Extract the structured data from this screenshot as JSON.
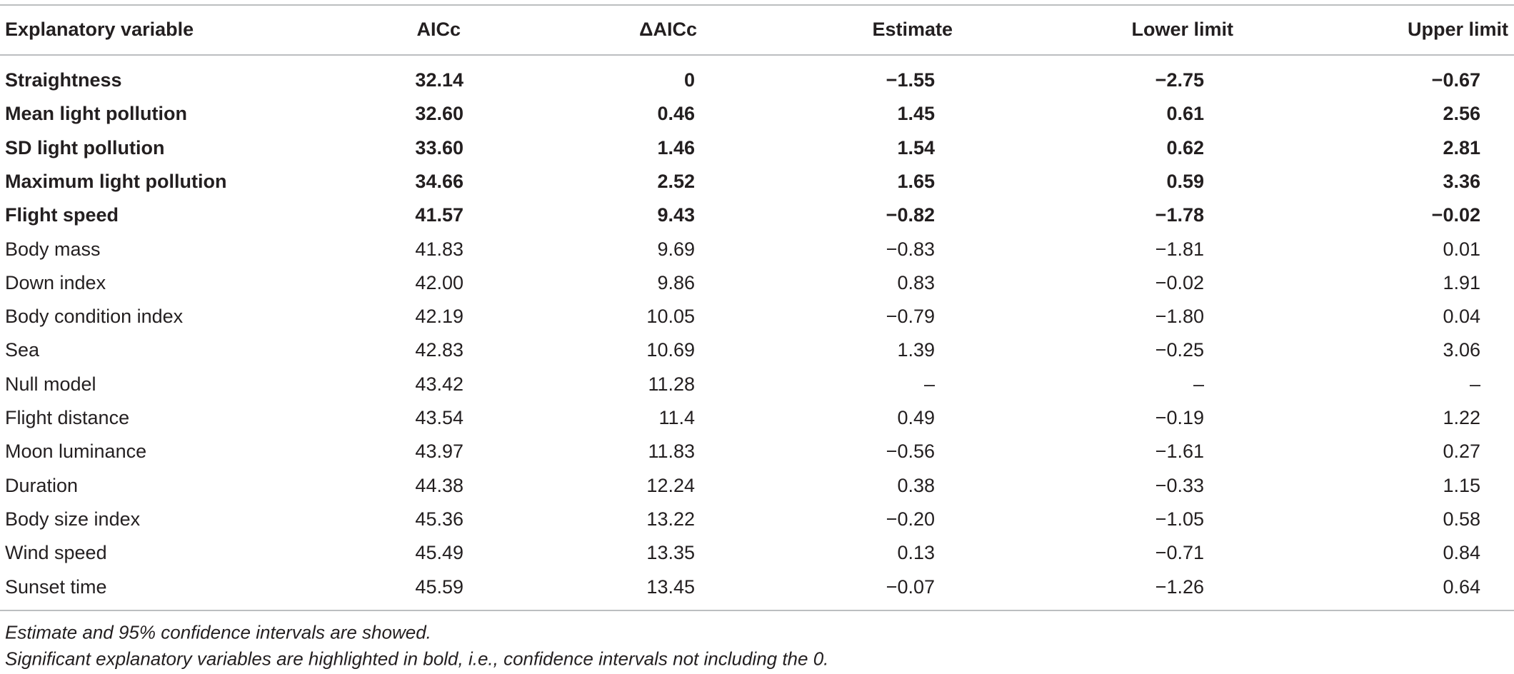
{
  "table": {
    "headers": [
      "Explanatory variable",
      "AICc",
      "ΔAICc",
      "Estimate",
      "Lower limit",
      "Upper limit"
    ],
    "rows": [
      [
        "Straightness",
        "32.14",
        "0",
        "−1.55",
        "−2.75",
        "−0.67"
      ],
      [
        "Mean light pollution",
        "32.60",
        "0.46",
        "1.45",
        "0.61",
        "2.56"
      ],
      [
        "SD light pollution",
        "33.60",
        "1.46",
        "1.54",
        "0.62",
        "2.81"
      ],
      [
        "Maximum light pollution",
        "34.66",
        "2.52",
        "1.65",
        "0.59",
        "3.36"
      ],
      [
        "Flight speed",
        "41.57",
        "9.43",
        "−0.82",
        "−1.78",
        "−0.02"
      ],
      [
        "Body mass",
        "41.83",
        "9.69",
        "−0.83",
        "−1.81",
        "0.01"
      ],
      [
        "Down index",
        "42.00",
        "9.86",
        "0.83",
        "−0.02",
        "1.91"
      ],
      [
        "Body condition index",
        "42.19",
        "10.05",
        "−0.79",
        "−1.80",
        "0.04"
      ],
      [
        "Sea",
        "42.83",
        "10.69",
        "1.39",
        "−0.25",
        "3.06"
      ],
      [
        "Null model",
        "43.42",
        "11.28",
        "–",
        "–",
        "–"
      ],
      [
        "Flight distance",
        "43.54",
        "11.4",
        "0.49",
        "−0.19",
        "1.22"
      ],
      [
        "Moon luminance",
        "43.97",
        "11.83",
        "−0.56",
        "−1.61",
        "0.27"
      ],
      [
        "Duration",
        "44.38",
        "12.24",
        "0.38",
        "−0.33",
        "1.15"
      ],
      [
        "Body size index",
        "45.36",
        "13.22",
        "−0.20",
        "−1.05",
        "0.58"
      ],
      [
        "Wind speed",
        "45.49",
        "13.35",
        "0.13",
        "−0.71",
        "0.84"
      ],
      [
        "Sunset time",
        "45.59",
        "13.45",
        "−0.07",
        "−1.26",
        "0.64"
      ]
    ],
    "bold_rows": [
      0,
      1,
      2,
      3,
      4
    ],
    "footnotes": [
      "Estimate and 95% confidence intervals are showed.",
      "Significant explanatory variables are highlighted in bold, i.e., confidence intervals not including the 0."
    ]
  }
}
